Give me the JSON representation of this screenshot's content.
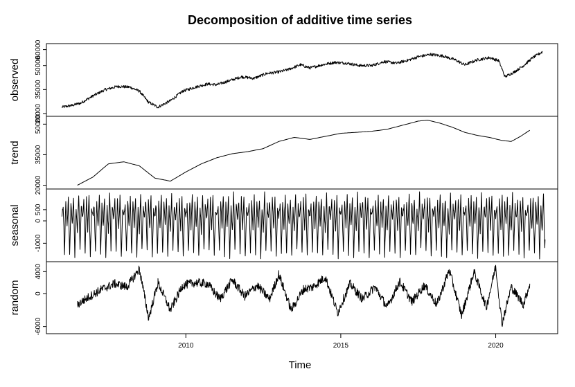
{
  "chart_data": {
    "type": "line",
    "title": "Decomposition of additive time series",
    "xlabel": "Time",
    "xlim": [
      2005.5,
      2022.0
    ],
    "xticks": [
      2010,
      2015,
      2020
    ],
    "grid": false,
    "panels": [
      {
        "name": "observed",
        "ylabel": "observed",
        "ylim": [
          20000,
          62000
        ],
        "yticks": [
          "20000",
          "35000",
          "50000",
          "60000"
        ],
        "series": {
          "x": [
            2006.0,
            2006.3,
            2006.6,
            2007.0,
            2007.4,
            2007.8,
            2008.2,
            2008.5,
            2008.8,
            2009.1,
            2009.5,
            2009.9,
            2010.3,
            2010.7,
            2011.0,
            2011.4,
            2011.8,
            2012.2,
            2012.6,
            2013.0,
            2013.3,
            2013.7,
            2014.0,
            2014.4,
            2014.8,
            2015.2,
            2015.6,
            2016.0,
            2016.4,
            2016.8,
            2017.2,
            2017.5,
            2017.9,
            2018.3,
            2018.7,
            2019.0,
            2019.4,
            2019.8,
            2020.1,
            2020.3,
            2020.6,
            2020.9,
            2021.2,
            2021.5
          ],
          "values": [
            24000,
            25000,
            26500,
            31000,
            35000,
            37000,
            36500,
            34000,
            27000,
            24000,
            28000,
            34000,
            36500,
            38500,
            38000,
            40500,
            43000,
            42000,
            45000,
            46000,
            47500,
            50500,
            48500,
            50500,
            52000,
            51500,
            50000,
            50000,
            52500,
            51500,
            53500,
            55500,
            57000,
            56000,
            53500,
            50500,
            53500,
            55000,
            53000,
            43000,
            46000,
            50000,
            55000,
            58500
          ]
        }
      },
      {
        "name": "trend",
        "ylabel": "trend",
        "ylim": [
          19500,
          52500
        ],
        "yticks": [
          "20000",
          "35000",
          "50000"
        ],
        "series": {
          "x": [
            2006.5,
            2007.0,
            2007.5,
            2008.0,
            2008.5,
            2009.0,
            2009.5,
            2010.0,
            2010.5,
            2011.0,
            2011.5,
            2012.0,
            2012.5,
            2013.0,
            2013.5,
            2014.0,
            2014.5,
            2015.0,
            2015.5,
            2016.0,
            2016.5,
            2017.0,
            2017.5,
            2017.8,
            2018.2,
            2018.6,
            2019.0,
            2019.4,
            2019.8,
            2020.2,
            2020.5,
            2020.8,
            2021.1
          ],
          "values": [
            20000,
            24000,
            30500,
            31500,
            29500,
            23500,
            22000,
            26500,
            30500,
            33500,
            35500,
            36500,
            38000,
            41500,
            43500,
            42500,
            44000,
            45500,
            46000,
            46500,
            47500,
            49500,
            51500,
            52000,
            50500,
            48500,
            46000,
            44500,
            43500,
            42000,
            41500,
            44000,
            47000
          ]
        }
      },
      {
        "name": "seasonal",
        "ylabel": "seasonal",
        "ylim": [
          -1700,
          1300
        ],
        "yticks": [
          "-1000",
          "0",
          "500"
        ],
        "series": {
          "x_start": 2006.0,
          "x_end": 2021.6,
          "period": 1.0,
          "waveform": [
            200,
            700,
            -1400,
            900,
            -300,
            1100,
            -1500,
            800,
            -200,
            1000,
            -1600,
            600,
            -500,
            1200,
            -1300,
            700,
            100,
            900,
            -1400,
            1000,
            -400,
            1100,
            -1600,
            500
          ],
          "note_amplitude": [
            -1600,
            1200
          ]
        }
      },
      {
        "name": "random",
        "ylabel": "random",
        "ylim": [
          -6800,
          5300
        ],
        "yticks": [
          "-6000",
          "0",
          "4000"
        ],
        "series": {
          "x": [
            2006.5,
            2006.9,
            2007.3,
            2007.7,
            2008.1,
            2008.5,
            2008.8,
            2009.1,
            2009.5,
            2009.9,
            2010.3,
            2010.7,
            2011.1,
            2011.5,
            2011.9,
            2012.3,
            2012.7,
            2013.0,
            2013.4,
            2013.8,
            2014.1,
            2014.5,
            2014.9,
            2015.3,
            2015.7,
            2016.1,
            2016.5,
            2016.9,
            2017.3,
            2017.7,
            2018.1,
            2018.5,
            2018.9,
            2019.3,
            2019.7,
            2020.0,
            2020.2,
            2020.5,
            2020.9,
            2021.1
          ],
          "values": [
            -2000,
            -500,
            800,
            1800,
            1200,
            4500,
            -4500,
            2000,
            -3000,
            1500,
            2000,
            1800,
            -1000,
            2500,
            -500,
            1500,
            -1000,
            3500,
            -3000,
            800,
            1200,
            3000,
            -3500,
            1800,
            -1000,
            1200,
            -2500,
            2200,
            -1500,
            1500,
            -2000,
            4300,
            -4000,
            4000,
            -2500,
            5000,
            -5500,
            1200,
            -2000,
            1800
          ]
        }
      }
    ]
  }
}
